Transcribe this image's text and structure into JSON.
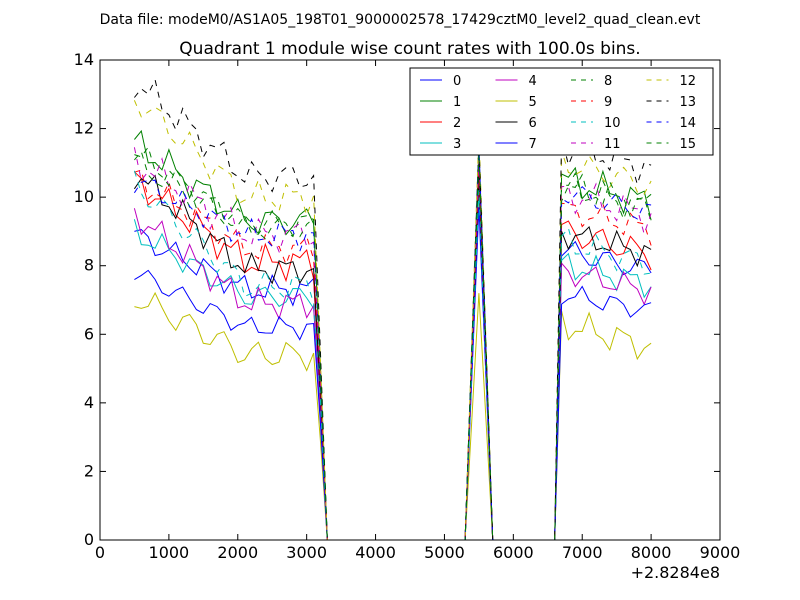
{
  "chart_data": {
    "type": "line",
    "suptitle": "Data file: modeM0/AS1A05_198T01_9000002578_17429cztM0_level2_quad_clean.evt",
    "title": "Quadrant 1 module wise count rates with 100.0s bins.",
    "xlabel": "",
    "ylabel": "",
    "x_offset_label": "+2.8284e8",
    "xlim": [
      0,
      9000
    ],
    "ylim": [
      0,
      14
    ],
    "xticks": [
      "0",
      "1000",
      "2000",
      "3000",
      "4000",
      "5000",
      "6000",
      "7000",
      "8000",
      "9000"
    ],
    "yticks": [
      "0",
      "2",
      "4",
      "6",
      "8",
      "10",
      "12",
      "14"
    ],
    "legend_position": "top-right",
    "segments": [
      {
        "x": [
          500,
          600,
          700,
          800,
          900,
          1000,
          1100,
          1200,
          1300,
          1400,
          1500,
          1600,
          1700,
          1800,
          1900,
          2000,
          2100,
          2200,
          2300,
          2400,
          2500,
          2600,
          2700,
          2800,
          2900,
          3000,
          3100,
          3200
        ],
        "index": 0
      },
      {
        "x": [
          3200,
          3300,
          3400,
          3500,
          3600,
          3700,
          3800,
          3900,
          4000,
          4100,
          4200,
          4300,
          4400,
          4500,
          4600,
          4700,
          4800,
          4900,
          5000,
          5100,
          5200,
          5300,
          5400,
          5500,
          5600,
          5700
        ],
        "index": 1
      },
      {
        "x": [
          5700,
          5800,
          5900,
          6000,
          6100,
          6200,
          6300,
          6400,
          6500,
          6600,
          6700,
          6800,
          6900,
          7000,
          7100,
          7200,
          7300,
          7400,
          7500,
          7600,
          7700,
          7800,
          7900,
          8000
        ],
        "index": 2
      }
    ],
    "series": [
      {
        "name": "0",
        "color": "#0000ff",
        "dash": "solid",
        "base": 8.9,
        "drop": 1.6,
        "peak": 11.0,
        "post": 8.0,
        "amp": 0.3,
        "phase": 0.0
      },
      {
        "name": "1",
        "color": "#008000",
        "dash": "solid",
        "base": 11.6,
        "drop": 2.3,
        "peak": 11.4,
        "post": 10.0,
        "amp": 0.35,
        "phase": 0.7
      },
      {
        "name": "2",
        "color": "#ff0000",
        "dash": "solid",
        "base": 10.5,
        "drop": 2.4,
        "peak": 10.8,
        "post": 8.5,
        "amp": 0.35,
        "phase": 1.4
      },
      {
        "name": "3",
        "color": "#00bfbf",
        "dash": "solid",
        "base": 9.0,
        "drop": 1.9,
        "peak": 10.3,
        "post": 7.6,
        "amp": 0.3,
        "phase": 2.1
      },
      {
        "name": "4",
        "color": "#bf00bf",
        "dash": "solid",
        "base": 9.5,
        "drop": 2.6,
        "peak": 10.5,
        "post": 7.4,
        "amp": 0.3,
        "phase": 2.8
      },
      {
        "name": "5",
        "color": "#bfbf00",
        "dash": "solid",
        "base": 7.1,
        "drop": 1.7,
        "peak": 7.2,
        "post": 5.8,
        "amp": 0.35,
        "phase": 3.5
      },
      {
        "name": "6",
        "color": "#000000",
        "dash": "solid",
        "base": 10.7,
        "drop": 2.8,
        "peak": 10.6,
        "post": 8.5,
        "amp": 0.3,
        "phase": 4.2
      },
      {
        "name": "7",
        "color": "#0000ff",
        "dash": "solid",
        "base": 7.8,
        "drop": 1.6,
        "peak": 9.7,
        "post": 6.8,
        "amp": 0.25,
        "phase": 4.9
      },
      {
        "name": "8",
        "color": "#008000",
        "dash": "dashed",
        "base": 11.0,
        "drop": 1.8,
        "peak": 11.1,
        "post": 9.8,
        "amp": 0.35,
        "phase": 0.4
      },
      {
        "name": "9",
        "color": "#ff0000",
        "dash": "dashed",
        "base": 10.6,
        "drop": 2.1,
        "peak": 10.9,
        "post": 9.2,
        "amp": 0.3,
        "phase": 1.1
      },
      {
        "name": "10",
        "color": "#00bfbf",
        "dash": "dashed",
        "base": 10.4,
        "drop": 3.0,
        "peak": 10.2,
        "post": 8.2,
        "amp": 0.35,
        "phase": 1.8
      },
      {
        "name": "11",
        "color": "#bf00bf",
        "dash": "dashed",
        "base": 11.1,
        "drop": 2.2,
        "peak": 11.2,
        "post": 9.6,
        "amp": 0.35,
        "phase": 2.5
      },
      {
        "name": "12",
        "color": "#bfbf00",
        "dash": "dashed",
        "base": 12.9,
        "drop": 2.9,
        "peak": 11.9,
        "post": 10.5,
        "amp": 0.35,
        "phase": 3.2
      },
      {
        "name": "13",
        "color": "#000000",
        "dash": "dashed",
        "base": 13.4,
        "drop": 2.8,
        "peak": 11.6,
        "post": 11.0,
        "amp": 0.35,
        "phase": 3.9
      },
      {
        "name": "14",
        "color": "#0000ff",
        "dash": "dashed",
        "base": 10.5,
        "drop": 1.6,
        "peak": 11.5,
        "post": 9.7,
        "amp": 0.3,
        "phase": 4.6
      },
      {
        "name": "15",
        "color": "#008000",
        "dash": "dashed",
        "base": 11.3,
        "drop": 2.2,
        "peak": 11.3,
        "post": 9.9,
        "amp": 0.3,
        "phase": 5.3
      }
    ]
  }
}
